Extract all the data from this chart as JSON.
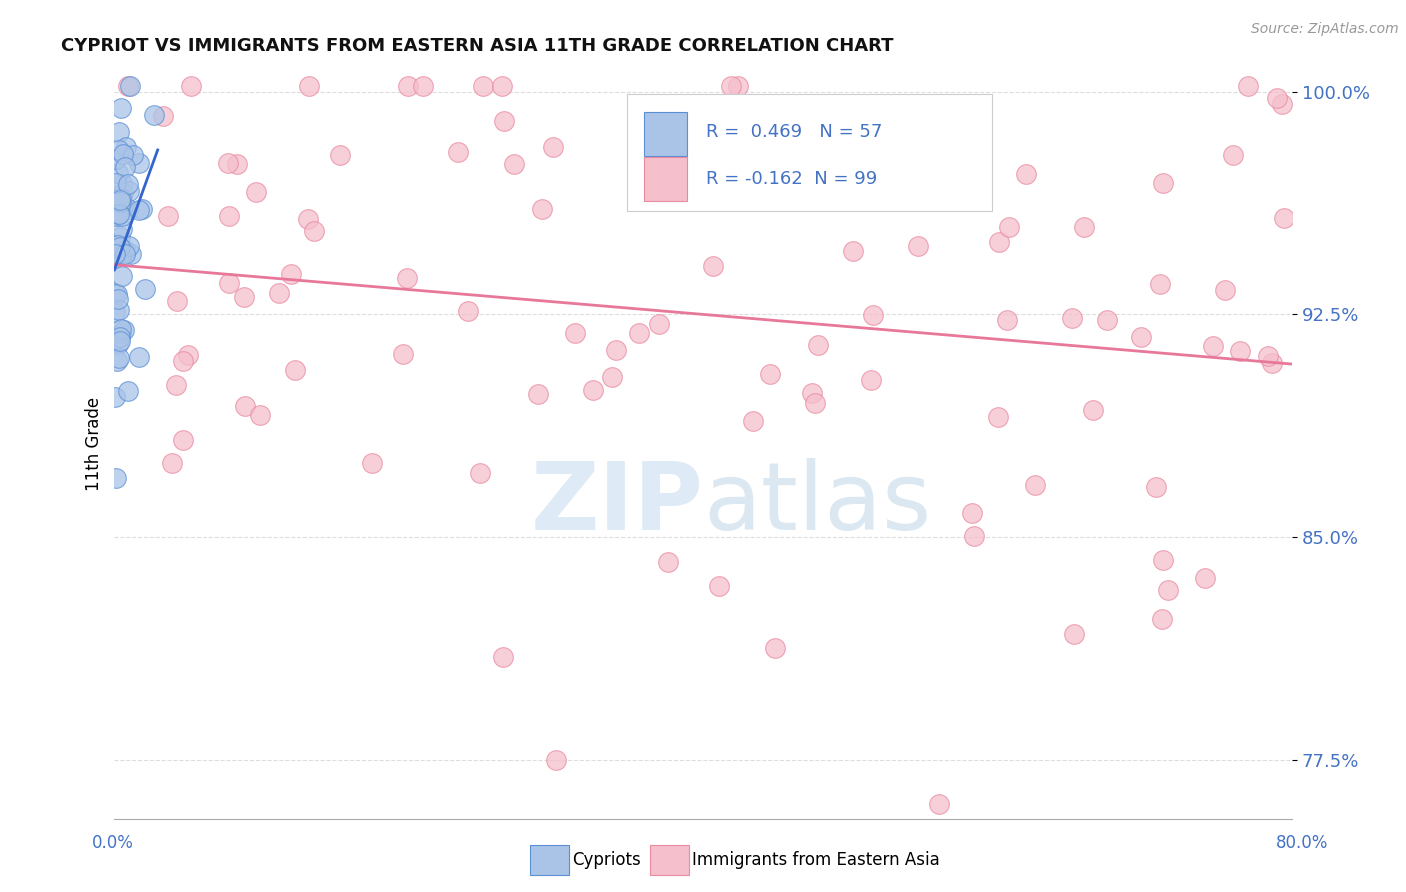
{
  "title": "CYPRIOT VS IMMIGRANTS FROM EASTERN ASIA 11TH GRADE CORRELATION CHART",
  "source": "Source: ZipAtlas.com",
  "ylabel": "11th Grade",
  "xmin": 0.0,
  "xmax": 0.8,
  "ymin": 0.755,
  "ymax": 1.008,
  "R_cypriot": 0.469,
  "N_cypriot": 57,
  "R_immigrant": -0.162,
  "N_immigrant": 99,
  "cypriot_color": "#aac4e8",
  "cypriot_edge": "#5b8fd4",
  "immigrant_color": "#f5bfcc",
  "immigrant_edge": "#e88aa0",
  "trend_cypriot_color": "#3366cc",
  "trend_immigrant_color": "#e8789a",
  "y_ticks": [
    0.775,
    0.85,
    0.925,
    1.0
  ],
  "y_tick_labels": [
    "77.5%",
    "85.0%",
    "92.5%",
    "100.0%"
  ],
  "grid_color": "#dddddd",
  "watermark_color": "#c8dff0"
}
